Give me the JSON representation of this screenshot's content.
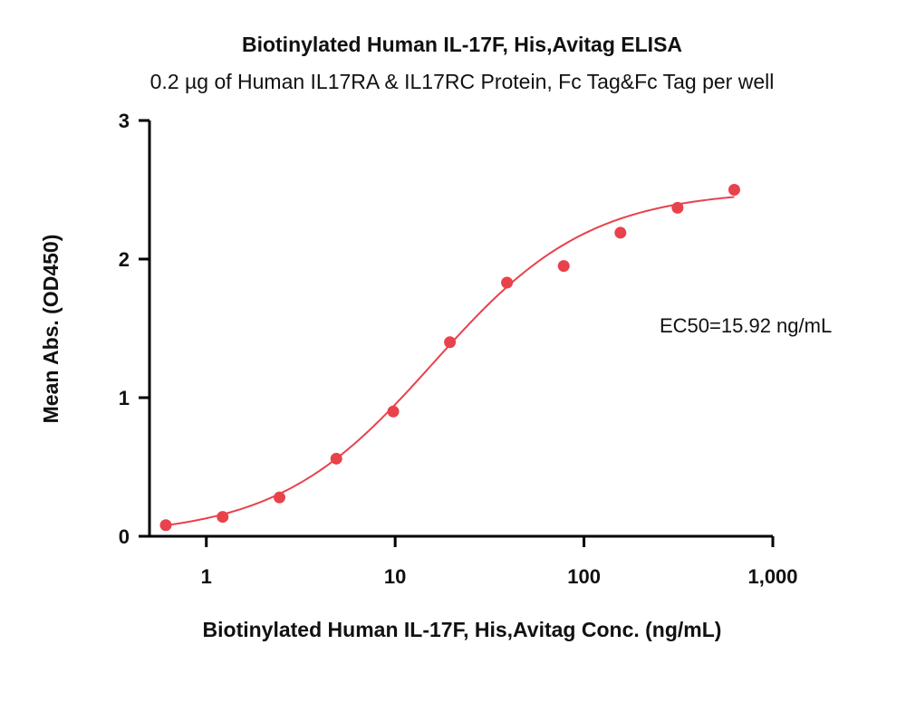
{
  "chart_data": {
    "type": "scatter",
    "title": "Biotinylated Human IL-17F, His,Avitag ELISA",
    "subtitle": "0.2 µg of Human IL17RA & IL17RC Protein, Fc Tag&Fc Tag per well",
    "xlabel": "Biotinylated Human IL-17F, His,Avitag Conc. (ng/mL)",
    "ylabel": "Mean Abs. (OD450)",
    "x_scale": "log",
    "xlim": [
      0.5,
      1000
    ],
    "ylim": [
      0,
      3
    ],
    "x_ticks": [
      1,
      10,
      100,
      1000
    ],
    "x_tick_labels": [
      "1",
      "10",
      "100",
      "1,000"
    ],
    "y_ticks": [
      0,
      1,
      2,
      3
    ],
    "y_tick_labels": [
      "0",
      "1",
      "2",
      "3"
    ],
    "grid": false,
    "color": "#e8424b",
    "annotation": "EC50=15.92 ng/mL",
    "series": [
      {
        "points": [
          {
            "x": 0.61,
            "y": 0.08
          },
          {
            "x": 1.22,
            "y": 0.14
          },
          {
            "x": 2.44,
            "y": 0.28
          },
          {
            "x": 4.88,
            "y": 0.56
          },
          {
            "x": 9.77,
            "y": 0.9
          },
          {
            "x": 19.5,
            "y": 1.4
          },
          {
            "x": 39.1,
            "y": 1.83
          },
          {
            "x": 78.1,
            "y": 1.95
          },
          {
            "x": 156,
            "y": 2.19
          },
          {
            "x": 313,
            "y": 2.37
          },
          {
            "x": 625,
            "y": 2.5
          }
        ],
        "fit": {
          "bottom": 0.0,
          "top": 2.5,
          "ec50": 15.92,
          "hill": 1.05
        }
      }
    ]
  }
}
